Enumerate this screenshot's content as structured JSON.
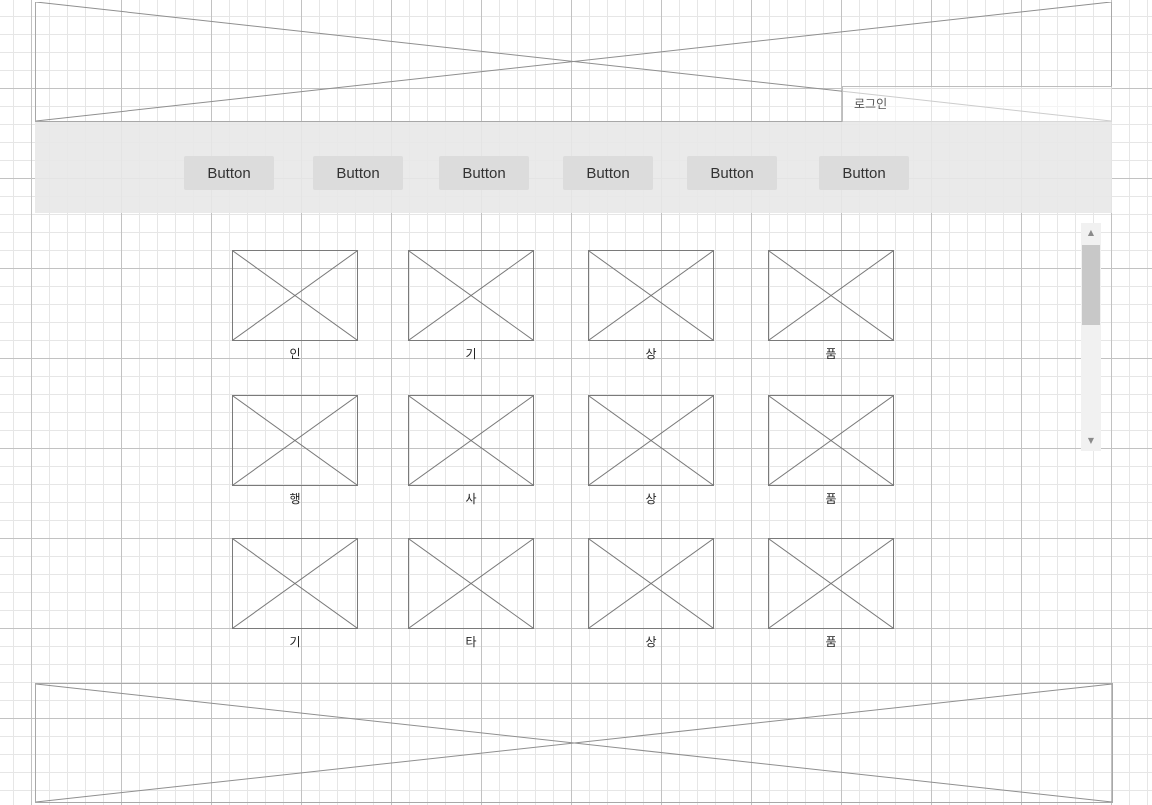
{
  "header": {
    "login_label": "로그인"
  },
  "nav": {
    "buttons": [
      "Button",
      "Button",
      "Button",
      "Button",
      "Button",
      "Button"
    ]
  },
  "grid": {
    "captions": [
      [
        "인",
        "기",
        "상",
        "품"
      ],
      [
        "행",
        "사",
        "상",
        "품"
      ],
      [
        "기",
        "타",
        "상",
        "품"
      ]
    ]
  },
  "scrollbar": {
    "up_icon": "scroll-up-arrow-icon",
    "down_icon": "scroll-down-arrow-icon"
  }
}
